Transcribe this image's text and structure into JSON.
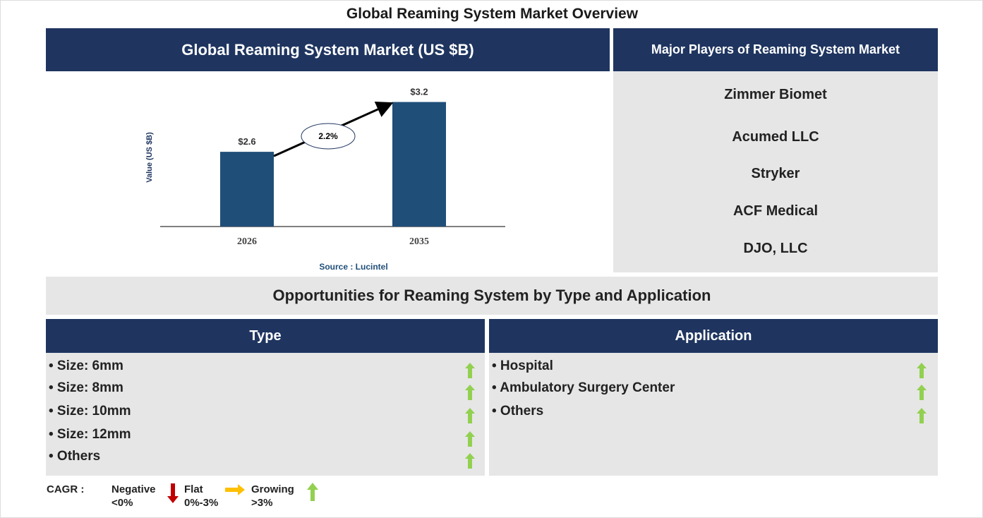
{
  "title": "Global Reaming System Market Overview",
  "chart_panel": {
    "header": "Global Reaming System Market (US $B)",
    "source": "Source : Lucintel"
  },
  "chart_data": {
    "type": "bar",
    "categories": [
      "2026",
      "2035"
    ],
    "values": [
      2.6,
      3.2
    ],
    "data_labels": [
      "$2.6",
      "$3.2"
    ],
    "ylabel": "Value (US $B)",
    "ylim": [
      1.7,
      3.4
    ],
    "grid": false,
    "annotation": "2.2%",
    "bar_color": "#1f4e79"
  },
  "players": {
    "header": "Major Players of Reaming System Market",
    "items": [
      "Zimmer Biomet",
      "Acumed LLC",
      "Stryker",
      "ACF Medical",
      "DJO, LLC"
    ]
  },
  "opportunities": {
    "header": "Opportunities for Reaming System by Type and Application",
    "type": {
      "header": "Type",
      "items": [
        "• Size: 6mm",
        "• Size: 8mm",
        "• Size: 10mm",
        "• Size: 12mm",
        "• Others"
      ],
      "trend": "growing"
    },
    "application": {
      "header": "Application",
      "items": [
        "• Hospital",
        "• Ambulatory Surgery Center",
        "• Others"
      ],
      "trend": "growing"
    }
  },
  "legend": {
    "label": "CAGR :",
    "negative": {
      "name": "Negative",
      "range": "<0%",
      "color": "#c00000"
    },
    "flat": {
      "name": "Flat",
      "range": "0%-3%",
      "color": "#ffc000"
    },
    "growing": {
      "name": "Growing",
      "range": ">3%",
      "color": "#92d050"
    }
  }
}
